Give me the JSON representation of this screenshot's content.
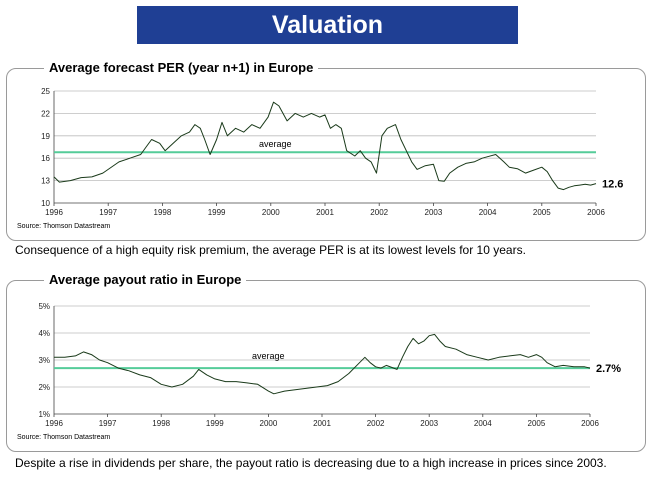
{
  "header": {
    "title": "Valuation"
  },
  "captions": {
    "per": "Consequence of a high equity risk premium, the average PER is at its lowest levels for 10 years.",
    "payout": "Despite a rise in dividends per share, the payout ratio is decreasing due to a high increase in prices since 2003."
  },
  "colors": {
    "banner": "#1f3f94",
    "line": "#1a3a1a",
    "average": "#55cc99",
    "grid": "#bdbdbd"
  },
  "chart_data": [
    {
      "type": "line",
      "title": "Average forecast PER (year n+1) in Europe",
      "source": "Source: Thomson Datastream",
      "xlim": [
        1996,
        2006
      ],
      "ylim": [
        10,
        25
      ],
      "xticks": [
        1996,
        1997,
        1998,
        1999,
        2000,
        2001,
        2002,
        2003,
        2004,
        2005,
        2006
      ],
      "yticks": [
        10,
        13,
        16,
        19,
        22,
        25
      ],
      "ytick_labels": [
        "10",
        "13",
        "16",
        "19",
        "22",
        "25"
      ],
      "average": {
        "label": "average",
        "value": 16.8
      },
      "end_label": "12.6",
      "series": [
        {
          "x": [
            1996.0,
            1996.1,
            1996.3,
            1996.5,
            1996.7,
            1996.9,
            1997.0,
            1997.2,
            1997.4,
            1997.6,
            1997.7,
            1997.8,
            1997.95,
            1998.05,
            1998.2,
            1998.35,
            1998.5,
            1998.6,
            1998.7,
            1998.78,
            1998.88,
            1999.0,
            1999.1,
            1999.2,
            1999.35,
            1999.5,
            1999.65,
            1999.8,
            1999.95,
            2000.05,
            2000.15,
            2000.3,
            2000.45,
            2000.6,
            2000.75,
            2000.9,
            2001.0,
            2001.1,
            2001.2,
            2001.3,
            2001.4,
            2001.55,
            2001.65,
            2001.75,
            2001.85,
            2001.95,
            2002.05,
            2002.15,
            2002.3,
            2002.4,
            2002.5,
            2002.6,
            2002.7,
            2002.85,
            2003.0,
            2003.1,
            2003.2,
            2003.3,
            2003.45,
            2003.6,
            2003.75,
            2003.9,
            2004.0,
            2004.15,
            2004.3,
            2004.4,
            2004.55,
            2004.7,
            2004.85,
            2005.0,
            2005.1,
            2005.2,
            2005.3,
            2005.4,
            2005.5,
            2005.6,
            2005.7,
            2005.8,
            2005.9,
            2006.0
          ],
          "y": [
            13.5,
            12.8,
            13.0,
            13.4,
            13.5,
            14.0,
            14.5,
            15.5,
            16.0,
            16.5,
            17.5,
            18.5,
            18.0,
            17.0,
            18.0,
            19.0,
            19.5,
            20.5,
            20.0,
            18.5,
            16.5,
            18.5,
            20.8,
            19.0,
            20.0,
            19.5,
            20.5,
            20.0,
            21.5,
            23.5,
            23.0,
            21.0,
            22.0,
            21.5,
            22.0,
            21.5,
            21.8,
            20.0,
            20.5,
            20.0,
            17.0,
            16.3,
            17.0,
            16.0,
            15.5,
            14.0,
            19.0,
            20.0,
            20.5,
            18.5,
            17.0,
            15.5,
            14.5,
            15.0,
            15.2,
            13.0,
            12.9,
            14.0,
            14.8,
            15.3,
            15.5,
            16.0,
            16.2,
            16.5,
            15.5,
            14.8,
            14.6,
            14.0,
            14.4,
            14.8,
            14.2,
            13.0,
            12.0,
            11.8,
            12.1,
            12.3,
            12.4,
            12.5,
            12.4,
            12.6
          ]
        }
      ]
    },
    {
      "type": "line",
      "title": "Average payout ratio in Europe",
      "source": "Source: Thomson Datastream",
      "xlim": [
        1996,
        2006
      ],
      "ylim": [
        1,
        5
      ],
      "xticks": [
        1996,
        1997,
        1998,
        1999,
        2000,
        2001,
        2002,
        2003,
        2004,
        2005,
        2006
      ],
      "yticks": [
        1,
        2,
        3,
        4,
        5
      ],
      "ytick_labels": [
        "1%",
        "2%",
        "3%",
        "4%",
        "5%"
      ],
      "average": {
        "label": "average",
        "value": 2.7
      },
      "end_label": "2.7%",
      "series": [
        {
          "x": [
            1996.0,
            1996.2,
            1996.4,
            1996.55,
            1996.7,
            1996.85,
            1997.0,
            1997.2,
            1997.4,
            1997.6,
            1997.8,
            1998.0,
            1998.2,
            1998.4,
            1998.6,
            1998.7,
            1998.85,
            1999.0,
            1999.2,
            1999.4,
            1999.6,
            1999.8,
            2000.0,
            2000.1,
            2000.3,
            2000.5,
            2000.7,
            2000.9,
            2001.1,
            2001.3,
            2001.5,
            2001.7,
            2001.8,
            2001.9,
            2002.0,
            2002.1,
            2002.2,
            2002.4,
            2002.5,
            2002.6,
            2002.7,
            2002.8,
            2002.9,
            2003.0,
            2003.1,
            2003.2,
            2003.3,
            2003.5,
            2003.7,
            2003.9,
            2004.1,
            2004.3,
            2004.5,
            2004.7,
            2004.85,
            2005.0,
            2005.1,
            2005.2,
            2005.35,
            2005.5,
            2005.7,
            2005.9,
            2006.0
          ],
          "y": [
            3.1,
            3.1,
            3.15,
            3.3,
            3.2,
            3.0,
            2.9,
            2.7,
            2.6,
            2.45,
            2.35,
            2.1,
            2.0,
            2.1,
            2.4,
            2.65,
            2.45,
            2.3,
            2.2,
            2.2,
            2.15,
            2.1,
            1.85,
            1.75,
            1.85,
            1.9,
            1.95,
            2.0,
            2.05,
            2.2,
            2.5,
            2.9,
            3.1,
            2.9,
            2.75,
            2.7,
            2.8,
            2.65,
            3.1,
            3.5,
            3.8,
            3.6,
            3.7,
            3.9,
            3.95,
            3.7,
            3.5,
            3.4,
            3.2,
            3.1,
            3.0,
            3.1,
            3.15,
            3.2,
            3.1,
            3.2,
            3.1,
            2.9,
            2.75,
            2.8,
            2.75,
            2.75,
            2.7
          ]
        }
      ]
    }
  ]
}
